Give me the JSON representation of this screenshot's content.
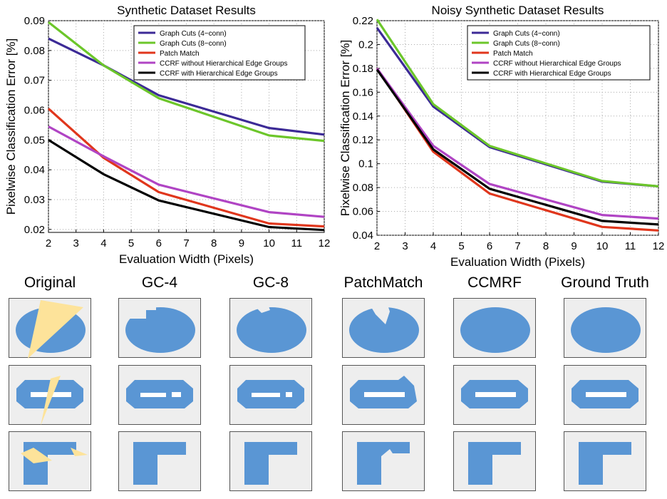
{
  "colors": {
    "gc4": "#3c2a96",
    "gc8": "#6cc62a",
    "patchmatch": "#e0361c",
    "ccrf_without": "#b044c4",
    "ccrf_with": "#000000",
    "shape": "#5a96d4",
    "occluder": "#fde39a",
    "background": "#eeeeee"
  },
  "chart_data": [
    {
      "type": "line",
      "title": "Synthetic Dataset Results",
      "xlabel": "Evaluation Width (Pixels)",
      "ylabel": "Pixelwise Classification Error [%]",
      "xlim": [
        2,
        12
      ],
      "ylim": [
        0.019,
        0.09
      ],
      "xticks": [
        2,
        3,
        4,
        5,
        6,
        7,
        8,
        9,
        10,
        11,
        12
      ],
      "yticks": [
        0.02,
        0.03,
        0.04,
        0.05,
        0.06,
        0.07,
        0.08,
        0.09
      ],
      "ytick_labels": [
        "0.02",
        "0.03",
        "0.04",
        "0.05",
        "0.06",
        "0.07",
        "0.08",
        "0.09"
      ],
      "grid": true,
      "legend_position": "top-right",
      "x": [
        2,
        4,
        6,
        10,
        12
      ],
      "series": [
        {
          "name": "Graph Cuts (4−conn)",
          "key": "gc4",
          "values": [
            0.084,
            0.075,
            0.065,
            0.054,
            0.0518
          ]
        },
        {
          "name": "Graph Cuts (8−conn)",
          "key": "gc8",
          "values": [
            0.0895,
            0.075,
            0.064,
            0.0515,
            0.0497
          ]
        },
        {
          "name": "Patch Match",
          "key": "patchmatch",
          "values": [
            0.0605,
            0.044,
            0.0325,
            0.022,
            0.021
          ]
        },
        {
          "name": "CCRF without Hierarchical Edge Groups",
          "key": "ccrf_without",
          "values": [
            0.0545,
            0.0445,
            0.035,
            0.0258,
            0.0242
          ]
        },
        {
          "name": "CCRF with Hierarchical Edge Groups",
          "key": "ccrf_with",
          "values": [
            0.05,
            0.0385,
            0.0297,
            0.0208,
            0.0198
          ]
        }
      ]
    },
    {
      "type": "line",
      "title": "Noisy Synthetic Dataset Results",
      "xlabel": "Evaluation Width (Pixels)",
      "ylabel": "Pixelwise Classification Error [%]",
      "xlim": [
        2,
        12
      ],
      "ylim": [
        0.04,
        0.22
      ],
      "xticks": [
        2,
        3,
        4,
        5,
        6,
        7,
        8,
        9,
        10,
        11,
        12
      ],
      "yticks": [
        0.04,
        0.06,
        0.08,
        0.1,
        0.12,
        0.14,
        0.16,
        0.18,
        0.2,
        0.22
      ],
      "ytick_labels": [
        "0.04",
        "0.06",
        "0.08",
        "0.1",
        "0.12",
        "0.14",
        "0.16",
        "0.18",
        "0.2",
        "0.22"
      ],
      "grid": true,
      "legend_position": "top-right",
      "x": [
        2,
        4,
        6,
        10,
        12
      ],
      "series": [
        {
          "name": "Graph Cuts (4−conn)",
          "key": "gc4",
          "values": [
            0.214,
            0.148,
            0.114,
            0.085,
            0.081
          ]
        },
        {
          "name": "Graph Cuts (8−conn)",
          "key": "gc8",
          "values": [
            0.221,
            0.15,
            0.115,
            0.0855,
            0.081
          ]
        },
        {
          "name": "Patch Match",
          "key": "patchmatch",
          "values": [
            0.18,
            0.11,
            0.075,
            0.047,
            0.044
          ]
        },
        {
          "name": "CCRF without Hierarchical Edge Groups",
          "key": "ccrf_without",
          "values": [
            0.18,
            0.115,
            0.083,
            0.057,
            0.054
          ]
        },
        {
          "name": "CCRF with Hierarchical Edge Groups",
          "key": "ccrf_with",
          "values": [
            0.179,
            0.112,
            0.079,
            0.052,
            0.049
          ]
        }
      ]
    }
  ],
  "gallery": {
    "columns": [
      {
        "key": "original",
        "title": "Original"
      },
      {
        "key": "gc4",
        "title": "GC-4"
      },
      {
        "key": "gc8",
        "title": "GC-8"
      },
      {
        "key": "patchmatch",
        "title": "PatchMatch"
      },
      {
        "key": "ccmrf",
        "title": "CCMRF"
      },
      {
        "key": "ground_truth",
        "title": "Ground Truth"
      }
    ],
    "rows": [
      "ellipse",
      "ring",
      "l-shape"
    ]
  }
}
